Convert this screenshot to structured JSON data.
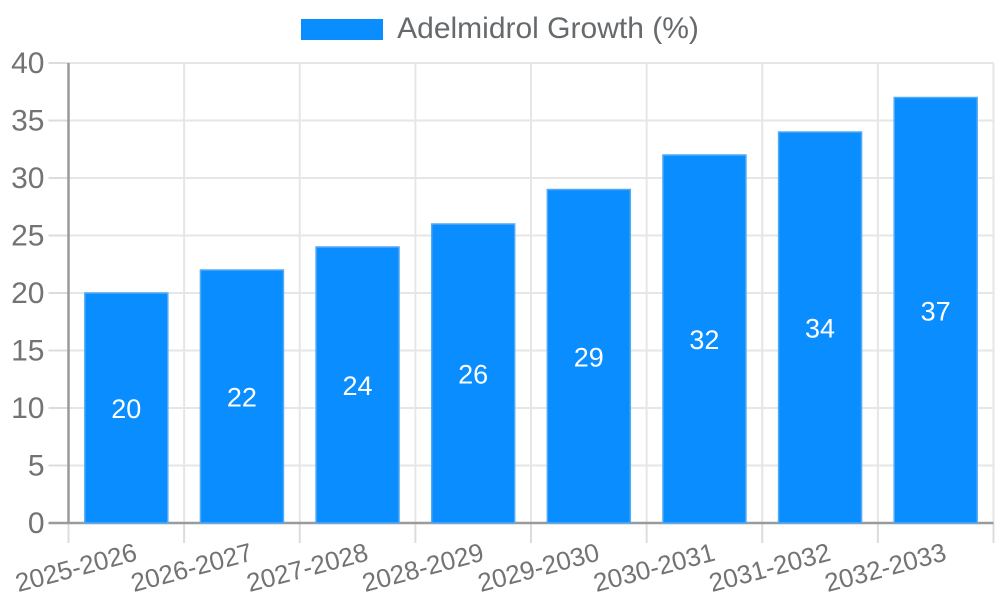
{
  "legend": {
    "label": "Adelmidrol Growth (%)",
    "swatch_color": "#0a8dff"
  },
  "chart_data": {
    "type": "bar",
    "title": "",
    "xlabel": "",
    "ylabel": "",
    "categories": [
      "2025-2026",
      "2026-2027",
      "2027-2028",
      "2028-2029",
      "2029-2030",
      "2030-2031",
      "2031-2032",
      "2032-2033"
    ],
    "series": [
      {
        "name": "Adelmidrol Growth (%)",
        "values": [
          20,
          22,
          24,
          26,
          29,
          32,
          34,
          37
        ]
      }
    ],
    "value_labels": [
      "20",
      "22",
      "24",
      "26",
      "29",
      "32",
      "34",
      "37"
    ],
    "ylim": [
      0,
      40
    ],
    "yticks": [
      0,
      5,
      10,
      15,
      20,
      25,
      30,
      35,
      40
    ],
    "grid": true,
    "legend_position": "top-center",
    "x_label_rotation_deg": -15,
    "colors": {
      "bar_fill": "#0a8dff",
      "bar_edge": "#54aaf2",
      "grid_line": "#e6e6e6",
      "axis_line": "#9a9a9a",
      "tick_mark": "#dcdcdc",
      "tick_label": "#737373",
      "legend_text": "#666a6d",
      "value_label": "#ffffff",
      "background": "#ffffff"
    }
  }
}
